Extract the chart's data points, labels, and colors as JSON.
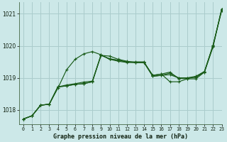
{
  "title": "Graphe pression niveau de la mer (hPa)",
  "bg_color": "#cce8e8",
  "grid_color": "#aacccc",
  "line_color": "#1a5c1a",
  "xlim": [
    -0.5,
    23
  ],
  "ylim": [
    1017.55,
    1021.35
  ],
  "yticks": [
    1018,
    1019,
    1020,
    1021
  ],
  "xtick_labels": [
    "0",
    "1",
    "2",
    "3",
    "4",
    "5",
    "6",
    "7",
    "8",
    "9",
    "10",
    "11",
    "12",
    "13",
    "14",
    "15",
    "16",
    "17",
    "18",
    "19",
    "20",
    "21",
    "22",
    "23"
  ],
  "series": [
    [
      1017.72,
      1017.82,
      1018.15,
      1018.18,
      1018.72,
      1018.78,
      1018.82,
      1018.87,
      1018.9,
      1019.72,
      1019.58,
      1019.55,
      1019.5,
      1019.5,
      1019.5,
      1019.05,
      1019.08,
      1019.1,
      1019.0,
      1019.0,
      1019.02,
      1019.18,
      1020.02,
      1021.1
    ],
    [
      1017.72,
      1017.82,
      1018.15,
      1018.18,
      1018.68,
      1019.25,
      1019.58,
      1019.75,
      1019.82,
      1019.72,
      1019.58,
      1019.52,
      1019.48,
      1019.48,
      1019.47,
      1019.05,
      1019.08,
      1019.15,
      1019.0,
      1019.0,
      1019.05,
      1019.2,
      1020.02,
      1021.12
    ],
    [
      1017.72,
      1017.82,
      1018.15,
      1018.18,
      1018.72,
      1018.75,
      1018.8,
      1018.82,
      1018.88,
      1019.7,
      1019.6,
      1019.55,
      1019.5,
      1019.48,
      1019.48,
      1019.08,
      1019.12,
      1018.88,
      1018.88,
      1018.97,
      1018.97,
      1019.18,
      1019.97,
      1021.15
    ],
    [
      1017.72,
      1017.82,
      1018.15,
      1018.18,
      1018.72,
      1018.75,
      1018.8,
      1018.82,
      1018.88,
      1019.7,
      1019.68,
      1019.58,
      1019.52,
      1019.48,
      1019.48,
      1019.08,
      1019.12,
      1019.18,
      1018.98,
      1018.98,
      1019.03,
      1019.2,
      1020.0,
      1021.15
    ]
  ]
}
